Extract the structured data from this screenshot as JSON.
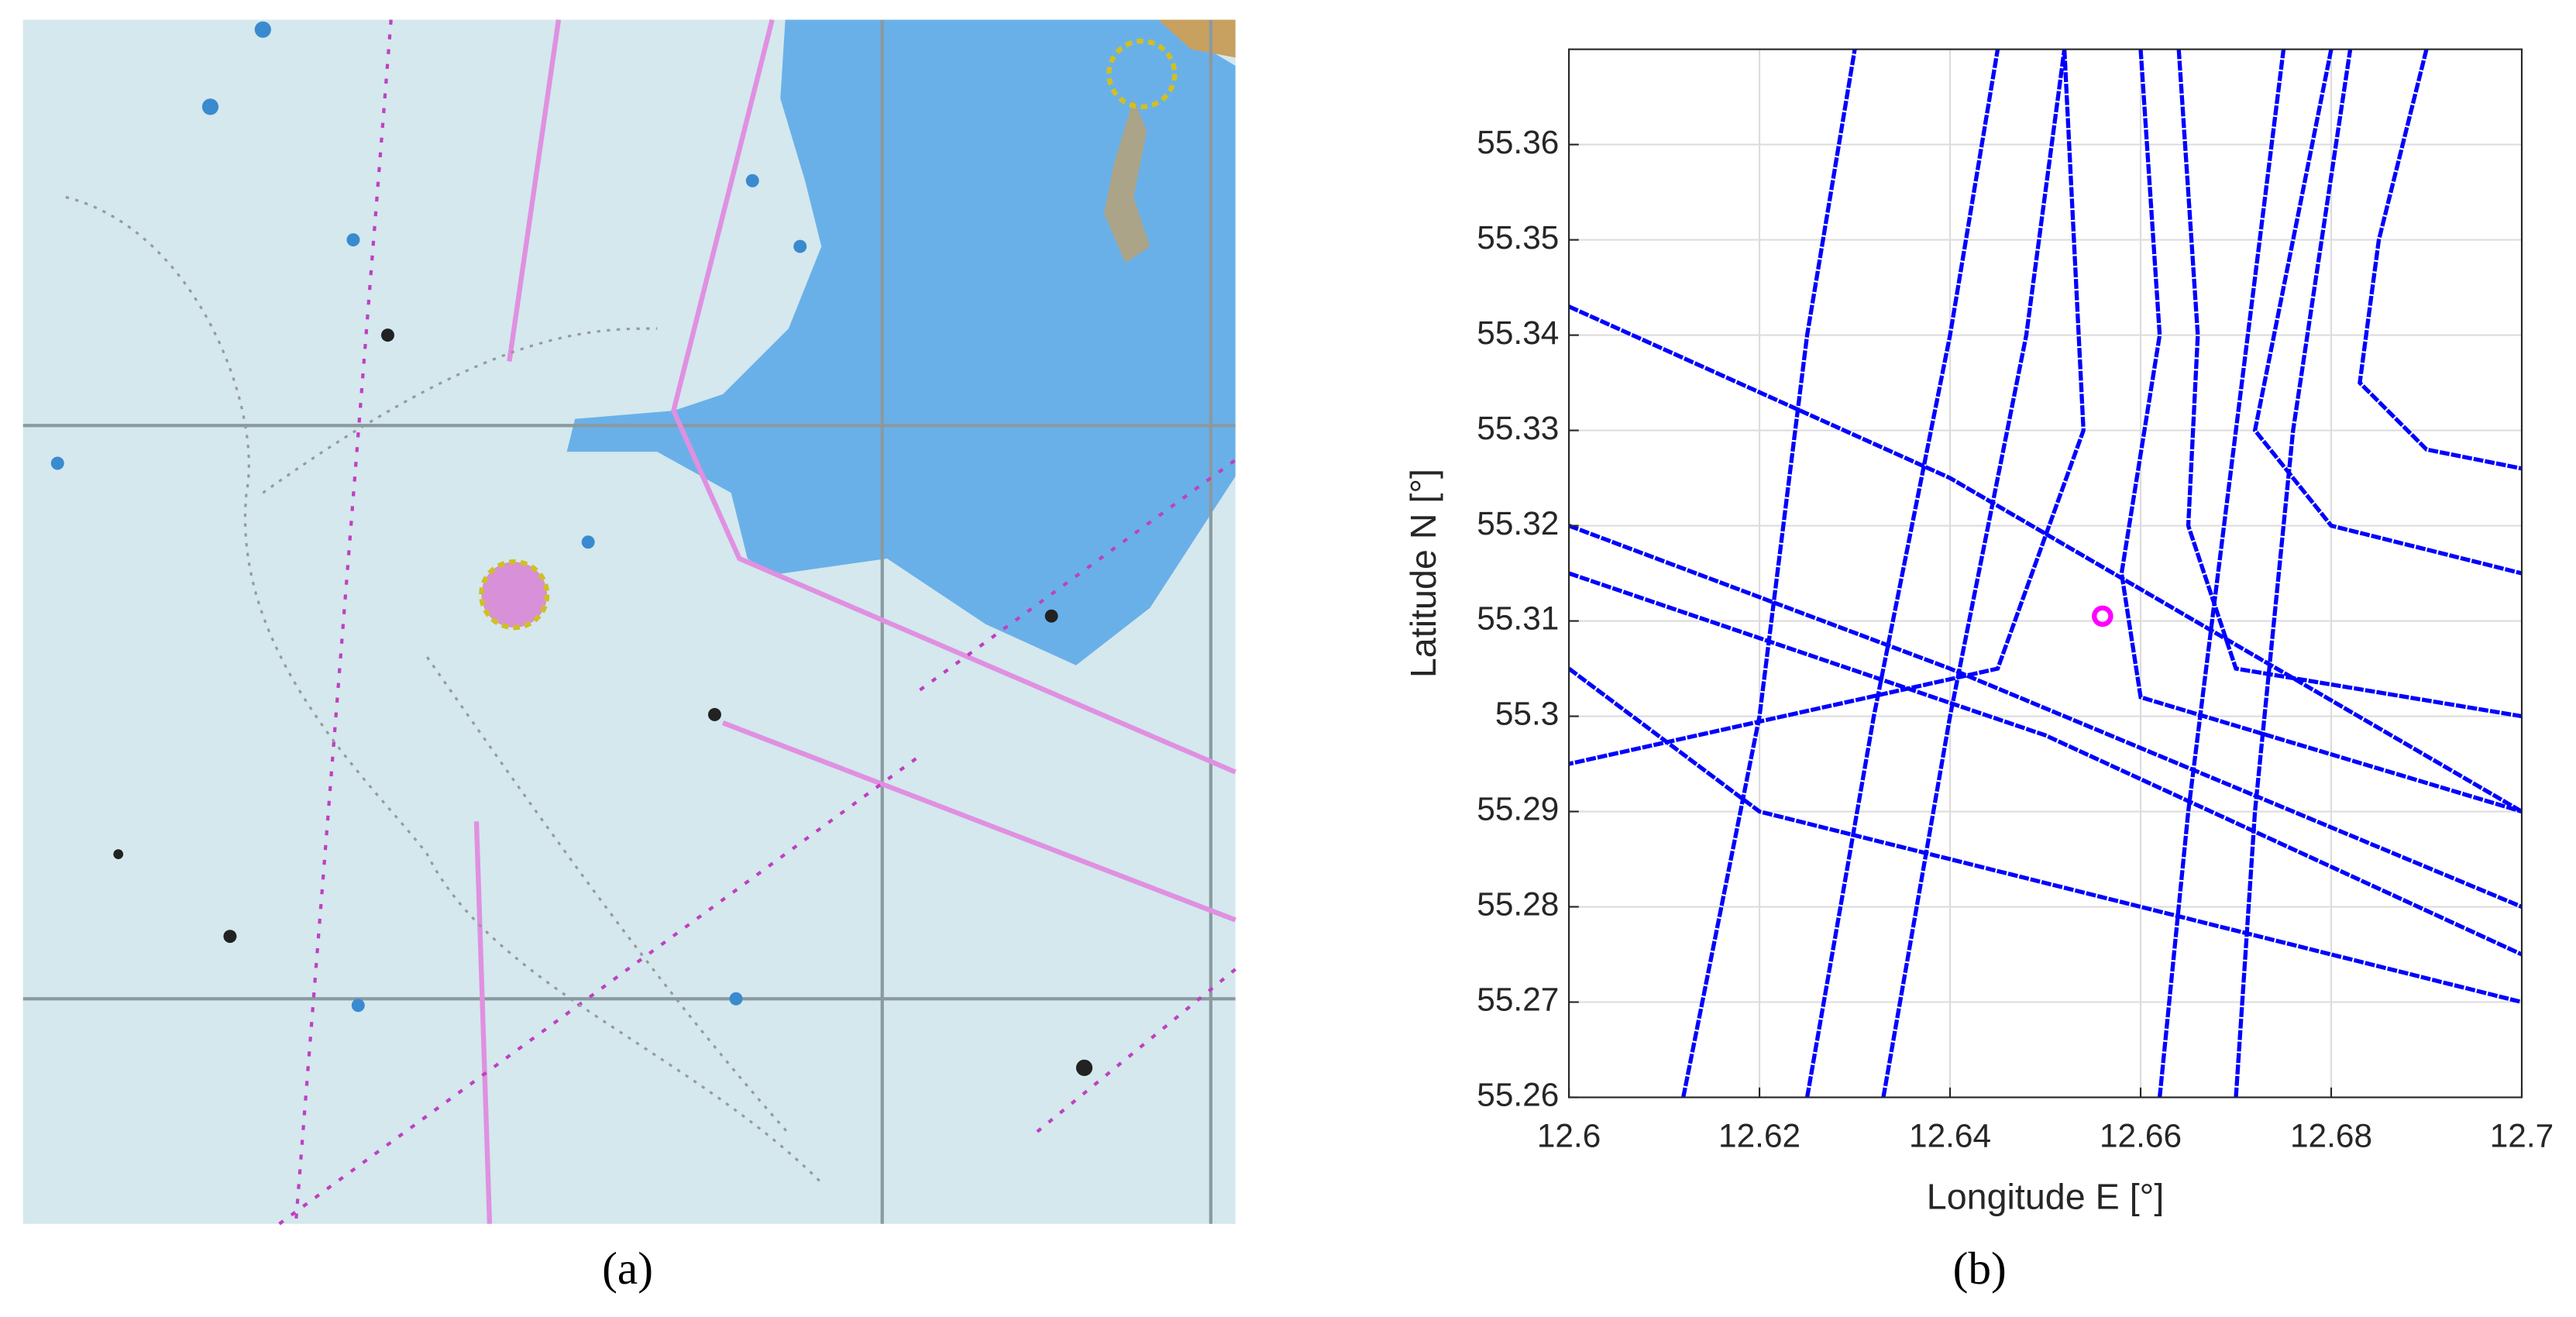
{
  "map": {
    "label": "(a)"
  },
  "chart_data": {
    "type": "line",
    "label": "(b)",
    "xlabel": "Longitude E [°]",
    "ylabel": "Latitude N [°]",
    "xlim": [
      12.6,
      12.7
    ],
    "ylim": [
      55.26,
      55.37
    ],
    "xticks": [
      12.6,
      12.62,
      12.64,
      12.66,
      12.68,
      12.7
    ],
    "yticks": [
      55.26,
      55.27,
      55.28,
      55.29,
      55.3,
      55.31,
      55.32,
      55.33,
      55.34,
      55.35,
      55.36
    ],
    "grid": true,
    "series": [
      {
        "color": "#0000ff",
        "x": [
          12.6,
          12.64,
          12.7
        ],
        "values": [
          55.343,
          55.325,
          55.29
        ]
      },
      {
        "color": "#0000ff",
        "x": [
          12.6,
          12.64,
          12.7
        ],
        "values": [
          55.32,
          55.305,
          55.28
        ]
      },
      {
        "color": "#0000ff",
        "x": [
          12.6,
          12.65,
          12.7
        ],
        "values": [
          55.315,
          55.298,
          55.275
        ]
      },
      {
        "color": "#0000ff",
        "x": [
          12.625,
          12.632,
          12.64,
          12.645
        ],
        "values": [
          55.26,
          55.3,
          55.34,
          55.37
        ]
      },
      {
        "color": "#0000ff",
        "x": [
          12.633,
          12.64,
          12.648,
          12.652
        ],
        "values": [
          55.26,
          55.3,
          55.34,
          55.37
        ]
      },
      {
        "color": "#0000ff",
        "x": [
          12.612,
          12.62,
          12.625,
          12.63
        ],
        "values": [
          55.26,
          55.3,
          55.34,
          55.37
        ]
      },
      {
        "color": "#0000ff",
        "x": [
          12.66,
          12.662,
          12.658,
          12.66,
          12.7
        ],
        "values": [
          55.37,
          55.34,
          55.315,
          55.302,
          55.29
        ]
      },
      {
        "color": "#0000ff",
        "x": [
          12.664,
          12.666,
          12.665,
          12.67,
          12.7
        ],
        "values": [
          55.37,
          55.34,
          55.32,
          55.305,
          55.3
        ]
      },
      {
        "color": "#0000ff",
        "x": [
          12.68,
          12.675,
          12.672,
          12.68,
          12.7
        ],
        "values": [
          55.37,
          55.345,
          55.33,
          55.32,
          55.315
        ]
      },
      {
        "color": "#0000ff",
        "x": [
          12.69,
          12.685,
          12.683,
          12.69,
          12.7
        ],
        "values": [
          55.37,
          55.35,
          55.335,
          55.328,
          55.326
        ]
      },
      {
        "color": "#0000ff",
        "x": [
          12.662,
          12.665,
          12.67,
          12.675
        ],
        "values": [
          55.26,
          55.29,
          55.33,
          55.37
        ]
      },
      {
        "color": "#0000ff",
        "x": [
          12.67,
          12.672,
          12.676,
          12.682
        ],
        "values": [
          55.26,
          55.29,
          55.33,
          55.37
        ]
      },
      {
        "color": "#0000ff",
        "x": [
          12.652,
          12.654,
          12.645,
          12.6
        ],
        "values": [
          55.37,
          55.33,
          55.305,
          55.295
        ]
      },
      {
        "color": "#0000ff",
        "x": [
          12.6,
          12.62,
          12.7
        ],
        "values": [
          55.305,
          55.29,
          55.27
        ]
      },
      {
        "color": "#ff00ff",
        "marker": "o",
        "x": [
          12.656
        ],
        "values": [
          55.3105
        ]
      }
    ]
  }
}
